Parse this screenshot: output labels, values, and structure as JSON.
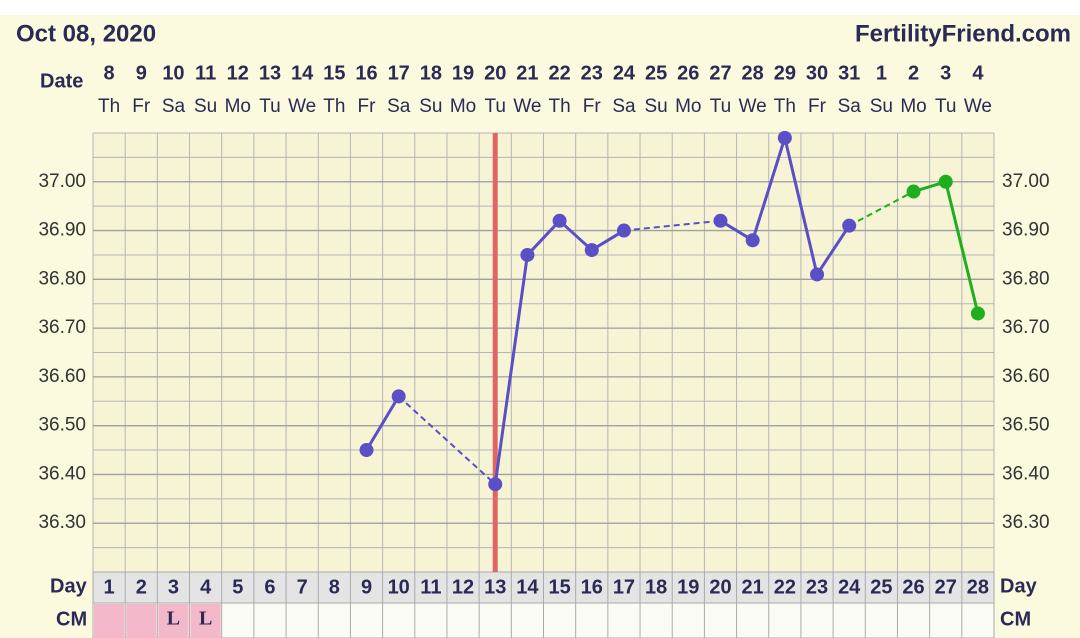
{
  "chart_data": {
    "type": "line",
    "title": "Oct 08, 2020",
    "site": "FertilityFriend.com",
    "date_label": "Date",
    "day_label": "Day",
    "cm_label": "CM",
    "categories": [
      1,
      2,
      3,
      4,
      5,
      6,
      7,
      8,
      9,
      10,
      11,
      12,
      13,
      14,
      15,
      16,
      17,
      18,
      19,
      20,
      21,
      22,
      23,
      24,
      25,
      26,
      27,
      28
    ],
    "dates": [
      "8",
      "9",
      "10",
      "11",
      "12",
      "13",
      "14",
      "15",
      "16",
      "17",
      "18",
      "19",
      "20",
      "21",
      "22",
      "23",
      "24",
      "25",
      "26",
      "27",
      "28",
      "29",
      "30",
      "31",
      "1",
      "2",
      "3",
      "4"
    ],
    "weekdays": [
      "Th",
      "Fr",
      "Sa",
      "Su",
      "Mo",
      "Tu",
      "We",
      "Th",
      "Fr",
      "Sa",
      "Su",
      "Mo",
      "Tu",
      "We",
      "Th",
      "Fr",
      "Sa",
      "Su",
      "Mo",
      "Tu",
      "We",
      "Th",
      "Fr",
      "Sa",
      "Su",
      "Mo",
      "Tu",
      "We"
    ],
    "series": [
      {
        "color": "#5a4fc7",
        "values": [
          null,
          null,
          null,
          null,
          null,
          null,
          null,
          null,
          36.45,
          36.56,
          null,
          null,
          36.38,
          36.85,
          36.92,
          36.86,
          36.9,
          null,
          null,
          36.92,
          36.88,
          37.09,
          36.81,
          36.91,
          null,
          null,
          null,
          null
        ]
      },
      {
        "color": "#1fae1f",
        "values": [
          null,
          null,
          null,
          null,
          null,
          null,
          null,
          null,
          null,
          null,
          null,
          null,
          null,
          null,
          null,
          null,
          null,
          null,
          null,
          null,
          null,
          null,
          null,
          null,
          null,
          36.98,
          37.0,
          36.73
        ]
      }
    ],
    "ylim": [
      36.2,
      37.1
    ],
    "yticks": [
      {
        "value": 36.3,
        "label": "36.30"
      },
      {
        "value": 36.4,
        "label": "36.40"
      },
      {
        "value": 36.5,
        "label": "36.50"
      },
      {
        "value": 36.6,
        "label": "36.60"
      },
      {
        "value": 36.7,
        "label": "36.70"
      },
      {
        "value": 36.8,
        "label": "36.80"
      },
      {
        "value": 36.9,
        "label": "36.90"
      },
      {
        "value": 37.0,
        "label": "37.00"
      }
    ],
    "grid": true,
    "ovulation_day": 13,
    "ovulation_color": "#e06666",
    "cm": [
      null,
      null,
      "L",
      "L",
      null,
      null,
      null,
      null,
      null,
      null,
      null,
      null,
      null,
      null,
      null,
      null,
      null,
      null,
      null,
      null,
      null,
      null,
      null,
      null,
      null,
      null,
      null,
      null
    ],
    "period_days": [
      1,
      2,
      3,
      4
    ],
    "period_color": "#f4b8cb"
  }
}
